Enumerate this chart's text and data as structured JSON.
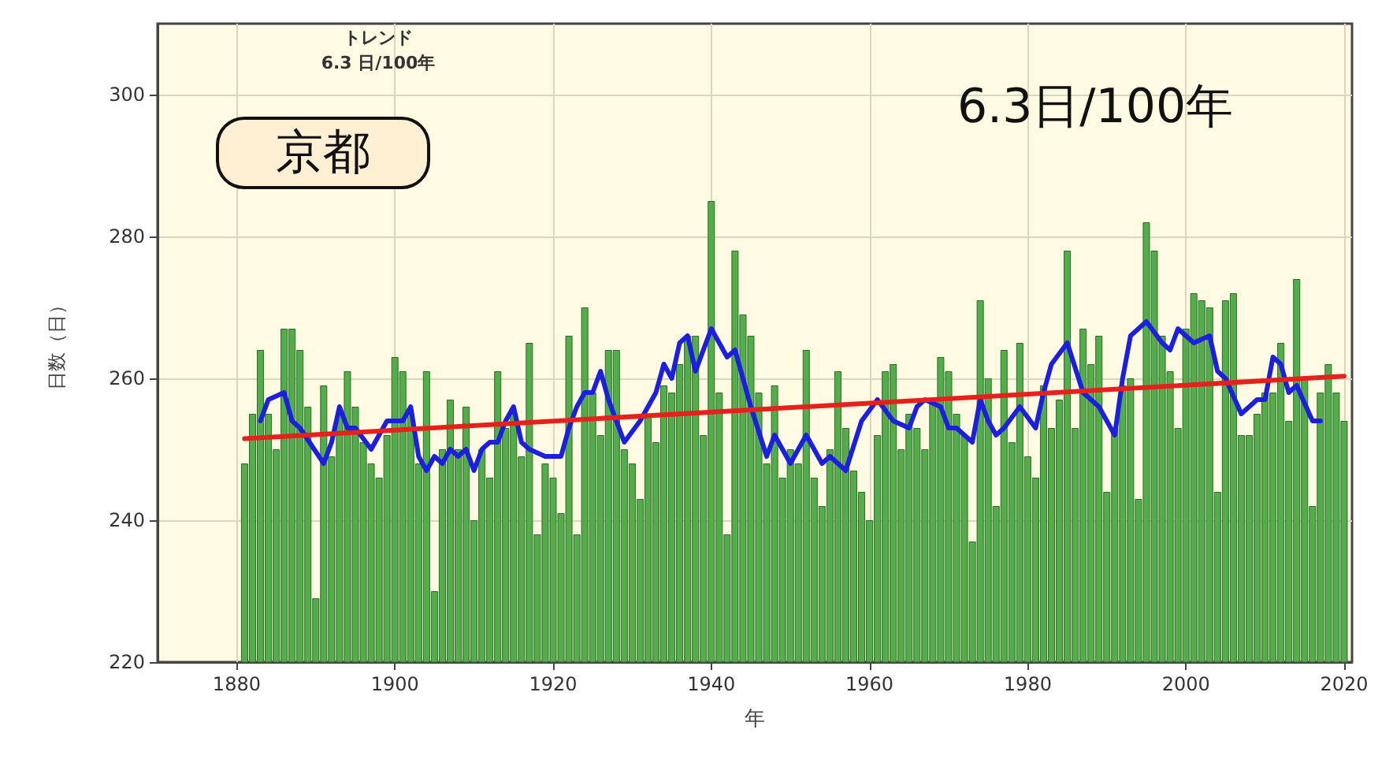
{
  "chart_data": {
    "type": "bar",
    "xlabel": "年",
    "ylabel": "日数（日）",
    "annotations": [
      "トレンド",
      "6.3 日/100年",
      "京都",
      "6.3日/100年"
    ],
    "xlim": [
      1870,
      2021
    ],
    "xticks": [
      1880,
      1900,
      1920,
      1940,
      1960,
      1980,
      2000,
      2020
    ],
    "ylim": [
      220,
      310
    ],
    "yticks": [
      220,
      240,
      260,
      280,
      300
    ],
    "grid": true,
    "series": [
      {
        "color": "#52ad4a",
        "x": [
          1881,
          1882,
          1883,
          1884,
          1885,
          1886,
          1887,
          1888,
          1889,
          1890,
          1891,
          1892,
          1893,
          1894,
          1895,
          1896,
          1897,
          1898,
          1899,
          1900,
          1901,
          1902,
          1903,
          1904,
          1905,
          1906,
          1907,
          1908,
          1909,
          1910,
          1911,
          1912,
          1913,
          1914,
          1915,
          1916,
          1917,
          1918,
          1919,
          1920,
          1921,
          1922,
          1923,
          1924,
          1925,
          1926,
          1927,
          1928,
          1929,
          1930,
          1931,
          1932,
          1933,
          1934,
          1935,
          1936,
          1937,
          1938,
          1939,
          1940,
          1941,
          1942,
          1943,
          1944,
          1945,
          1946,
          1947,
          1948,
          1949,
          1950,
          1951,
          1952,
          1953,
          1954,
          1955,
          1956,
          1957,
          1958,
          1959,
          1960,
          1961,
          1962,
          1963,
          1964,
          1965,
          1966,
          1967,
          1968,
          1969,
          1970,
          1971,
          1972,
          1973,
          1974,
          1975,
          1976,
          1977,
          1978,
          1979,
          1980,
          1981,
          1982,
          1983,
          1984,
          1985,
          1986,
          1987,
          1988,
          1989,
          1990,
          1991,
          1992,
          1993,
          1994,
          1995,
          1996,
          1997,
          1998,
          1999,
          2000,
          2001,
          2002,
          2003,
          2004,
          2005,
          2006,
          2007,
          2008,
          2009,
          2010,
          2011,
          2012,
          2013,
          2014,
          2015,
          2016,
          2017,
          2018,
          2019,
          2020
        ],
        "values": [
          248,
          255,
          264,
          255,
          250,
          267,
          267,
          264,
          256,
          229,
          259,
          249,
          255,
          261,
          256,
          251,
          248,
          246,
          252,
          263,
          261,
          255,
          248,
          261,
          230,
          250,
          257,
          250,
          256,
          240,
          250,
          246,
          261,
          253,
          255,
          249,
          265,
          238,
          248,
          246,
          241,
          266,
          238,
          270,
          258,
          252,
          264,
          264,
          250,
          248,
          243,
          255,
          251,
          259,
          258,
          262,
          266,
          266,
          252,
          285,
          258,
          238,
          278,
          269,
          266,
          258,
          248,
          259,
          246,
          250,
          248,
          264,
          246,
          242,
          250,
          261,
          253,
          247,
          244,
          240,
          252,
          261,
          262,
          250,
          255,
          253,
          250,
          257,
          263,
          261,
          255,
          252,
          237,
          271,
          260,
          242,
          264,
          251,
          265,
          249,
          246,
          259,
          253,
          257,
          278,
          253,
          267,
          262,
          266,
          244,
          253,
          259,
          260,
          243,
          282,
          278,
          266,
          261,
          253,
          267,
          272,
          271,
          270,
          244,
          271,
          272,
          252,
          252,
          255,
          258,
          258,
          265,
          254,
          274,
          260,
          242,
          258,
          262,
          258,
          254
        ]
      },
      {
        "type": "line",
        "color": "#1c1ee0",
        "x": [
          1883,
          1884,
          1886,
          1887,
          1888,
          1891,
          1892,
          1893,
          1894,
          1895,
          1897,
          1899,
          1901,
          1902,
          1903,
          1904,
          1905,
          1906,
          1907,
          1908,
          1909,
          1910,
          1911,
          1912,
          1913,
          1914,
          1915,
          1916,
          1917,
          1919,
          1921,
          1922,
          1923,
          1924,
          1925,
          1926,
          1927,
          1929,
          1931,
          1933,
          1934,
          1935,
          1936,
          1937,
          1938,
          1940,
          1942,
          1943,
          1945,
          1947,
          1948,
          1950,
          1952,
          1954,
          1955,
          1957,
          1959,
          1961,
          1963,
          1965,
          1966,
          1967,
          1969,
          1970,
          1971,
          1973,
          1974,
          1975,
          1976,
          1977,
          1979,
          1981,
          1982,
          1983,
          1985,
          1987,
          1988,
          1989,
          1991,
          1992,
          1993,
          1994,
          1995,
          1997,
          1998,
          1999,
          2001,
          2003,
          2004,
          2005,
          2007,
          2009,
          2010,
          2011,
          2012,
          2013,
          2014,
          2016,
          2017
        ],
        "values": [
          254,
          257,
          258,
          254,
          253,
          248,
          251,
          256,
          253,
          253,
          250,
          254,
          254,
          256,
          249,
          247,
          249,
          248,
          250,
          249,
          250,
          247,
          250,
          251,
          251,
          254,
          256,
          251,
          250,
          249,
          249,
          253,
          256,
          258,
          258,
          261,
          257,
          251,
          254,
          258,
          262,
          260,
          265,
          266,
          261,
          267,
          263,
          264,
          256,
          249,
          252,
          248,
          252,
          248,
          249,
          247,
          254,
          257,
          254,
          253,
          256,
          257,
          256,
          253,
          253,
          251,
          257,
          254,
          252,
          253,
          256,
          253,
          258,
          262,
          265,
          258,
          257,
          256,
          252,
          260,
          266,
          267,
          268,
          265,
          264,
          267,
          265,
          266,
          261,
          260,
          255,
          257,
          257,
          263,
          262,
          258,
          259,
          254,
          254
        ]
      },
      {
        "type": "line",
        "color": "#e8201c",
        "x": [
          1881,
          2020
        ],
        "values": [
          251.5,
          260.3
        ]
      }
    ]
  }
}
